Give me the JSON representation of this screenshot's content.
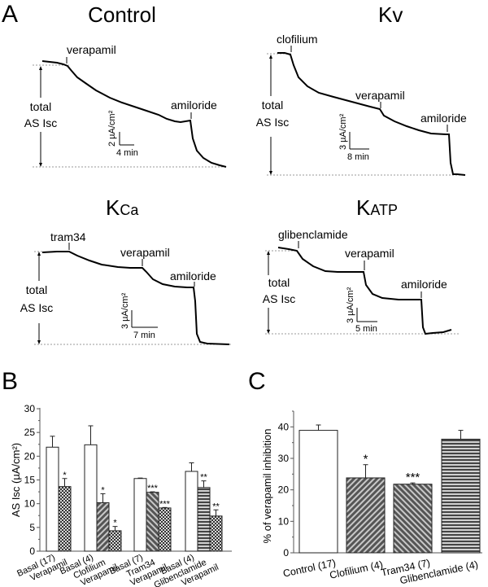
{
  "panel_letters": {
    "a": "A",
    "b": "B",
    "c": "C"
  },
  "traces": [
    {
      "title": "Control",
      "title_sub": "",
      "total_label_1": "total",
      "total_label_2": "AS Isc",
      "scale_y": "2 µA/cm²",
      "scale_x": "4 min",
      "drugs": [
        "verapamil",
        "amiloride"
      ]
    },
    {
      "title": "Kv",
      "title_sub": "",
      "total_label_1": "total",
      "total_label_2": "AS Isc",
      "scale_y": "3 µA/cm²",
      "scale_x": "8 min",
      "drugs": [
        "clofilium",
        "verapamil",
        "amiloride"
      ]
    },
    {
      "title": "K",
      "title_sub": "Ca",
      "total_label_1": "total",
      "total_label_2": "AS Isc",
      "scale_y": "3 µA/cm²",
      "scale_x": "7 min",
      "drugs": [
        "tram34",
        "verapamil",
        "amiloride"
      ]
    },
    {
      "title": "K",
      "title_sub": "ATP",
      "total_label_1": "total",
      "total_label_2": "AS Isc",
      "scale_y": "3 µA/cm²",
      "scale_x": "5 min",
      "drugs": [
        "glibenclamide",
        "verapamil",
        "amiloride"
      ]
    }
  ],
  "chart_data": [
    {
      "type": "bar",
      "panel": "B",
      "title": "",
      "xlabel": "",
      "ylabel": "AS Isc (µA/cm²)",
      "ylim": [
        0,
        30
      ],
      "yticks": [
        "0",
        "5",
        "10",
        "15",
        "20",
        "25",
        "30"
      ],
      "groups": [
        {
          "bars": [
            {
              "label": "Basal (17)",
              "value": 21.9,
              "error": 2.3,
              "pattern": "white",
              "sig": ""
            },
            {
              "label": "Verapamil",
              "value": 13.6,
              "error": 1.7,
              "pattern": "dots",
              "sig": "*"
            }
          ]
        },
        {
          "bars": [
            {
              "label": "Basal (4)",
              "value": 22.4,
              "error": 4.0,
              "pattern": "white",
              "sig": ""
            },
            {
              "label": "Clofilium",
              "value": 10.2,
              "error": 1.9,
              "pattern": "diag-right",
              "sig": "*"
            },
            {
              "label": "Verapamil",
              "value": 4.3,
              "error": 0.9,
              "pattern": "dots",
              "sig": "*"
            }
          ]
        },
        {
          "bars": [
            {
              "label": "Basal (7)",
              "value": 15.3,
              "error": 0.1,
              "pattern": "white",
              "sig": ""
            },
            {
              "label": "Tram34",
              "value": 12.4,
              "error": 0.1,
              "pattern": "diag-left",
              "sig": "***"
            },
            {
              "label": "Verapamil",
              "value": 9.1,
              "error": 0.1,
              "pattern": "dots",
              "sig": "***"
            }
          ]
        },
        {
          "bars": [
            {
              "label": "Basal (4)",
              "value": 16.8,
              "error": 1.8,
              "pattern": "white",
              "sig": ""
            },
            {
              "label": "Glibenclamide",
              "value": 13.4,
              "error": 1.4,
              "pattern": "horiz",
              "sig": "**"
            },
            {
              "label": "Verapamil",
              "value": 7.4,
              "error": 1.3,
              "pattern": "dots",
              "sig": "**"
            }
          ]
        }
      ]
    },
    {
      "type": "bar",
      "panel": "C",
      "title": "",
      "xlabel": "",
      "ylabel": "% of verapamil inhibition",
      "ylim": [
        0,
        45
      ],
      "yticks": [
        "0",
        "10",
        "20",
        "30",
        "40"
      ],
      "categories": [
        "Control (17)",
        "Clofilium (4)",
        "Tram34 (7)",
        "Glibenclamide (4)"
      ],
      "values": [
        38.9,
        23.8,
        21.8,
        36.1
      ],
      "errors": [
        1.7,
        4.2,
        0.4,
        2.8
      ],
      "patterns": [
        "white",
        "diag-right",
        "diag-left",
        "horiz"
      ],
      "significance": [
        "",
        "*",
        "***",
        ""
      ]
    }
  ]
}
